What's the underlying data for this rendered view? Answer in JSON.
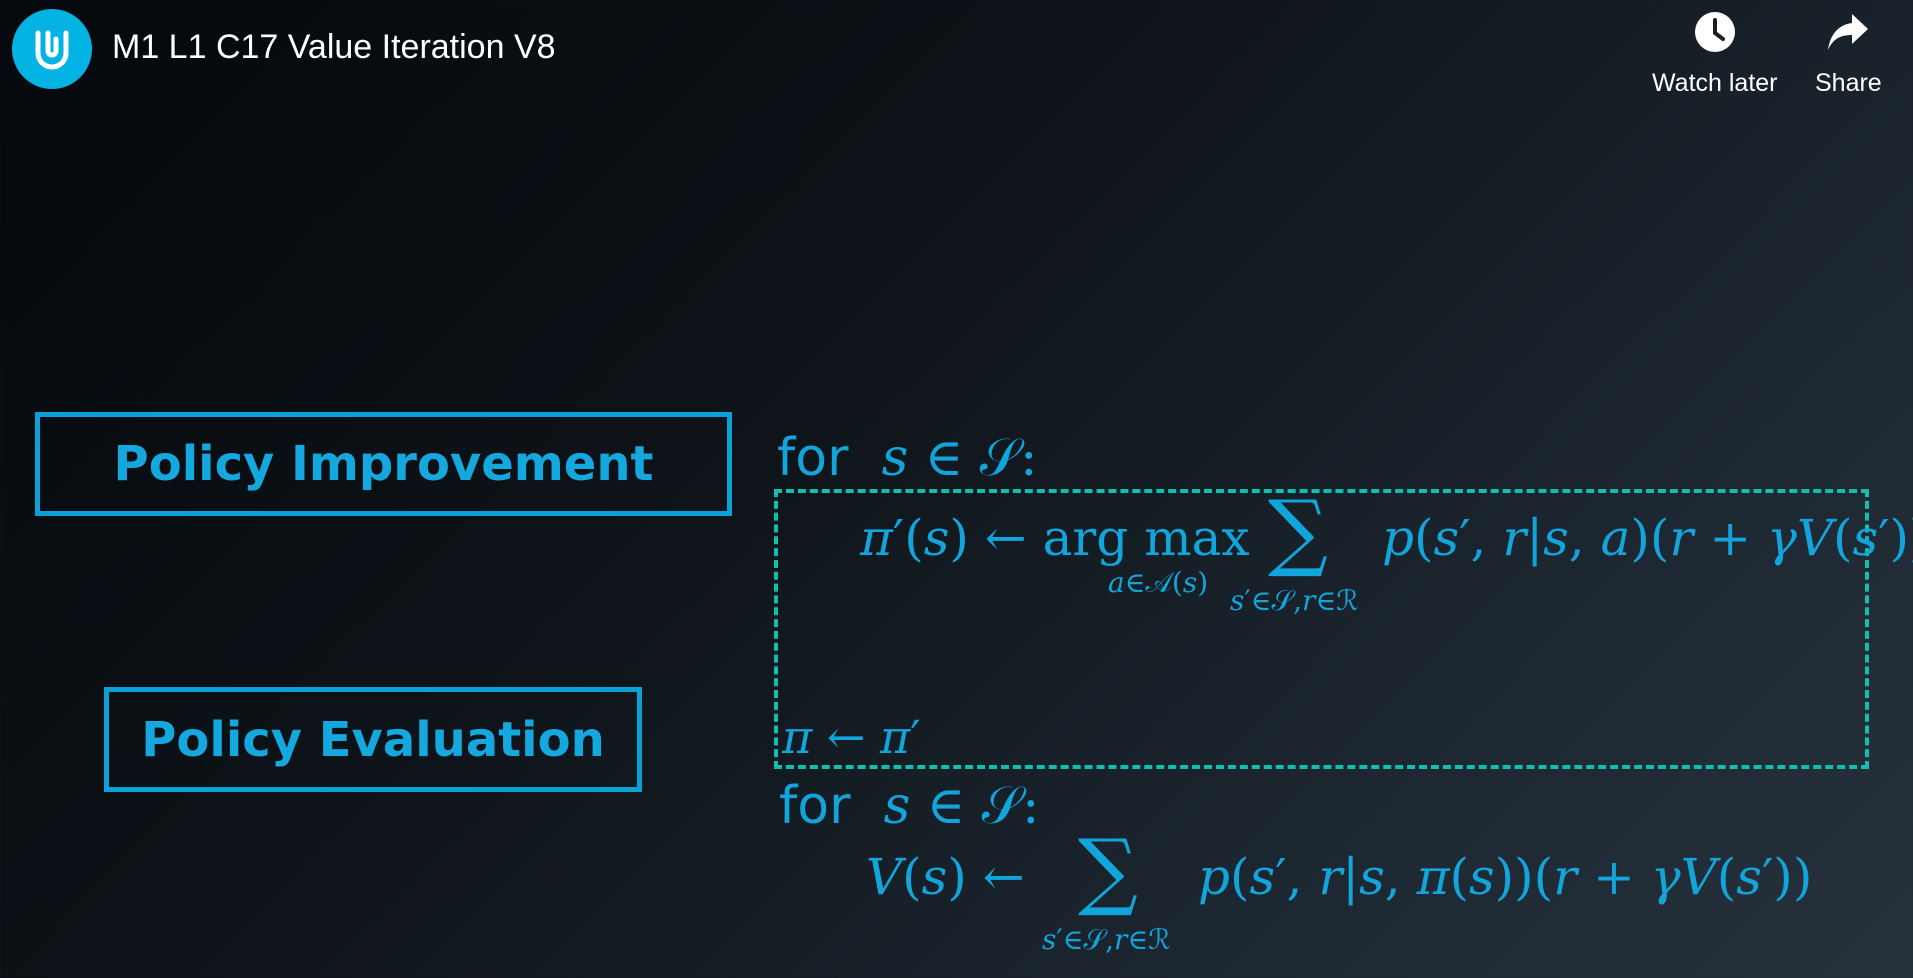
{
  "header": {
    "title": "M1 L1 C17 Value Iteration V8",
    "logo_icon": "udacity-logo-icon",
    "watch_later_label": "Watch later",
    "share_label": "Share"
  },
  "colors": {
    "accent_blue": "#14a8de",
    "dashed_teal": "#10bfb0",
    "logo_bg": "#02b3e4"
  },
  "slide": {
    "policy_improvement_label": "Policy Improvement",
    "policy_evaluation_label": "Policy Evaluation",
    "for_keyword": "for"
  }
}
